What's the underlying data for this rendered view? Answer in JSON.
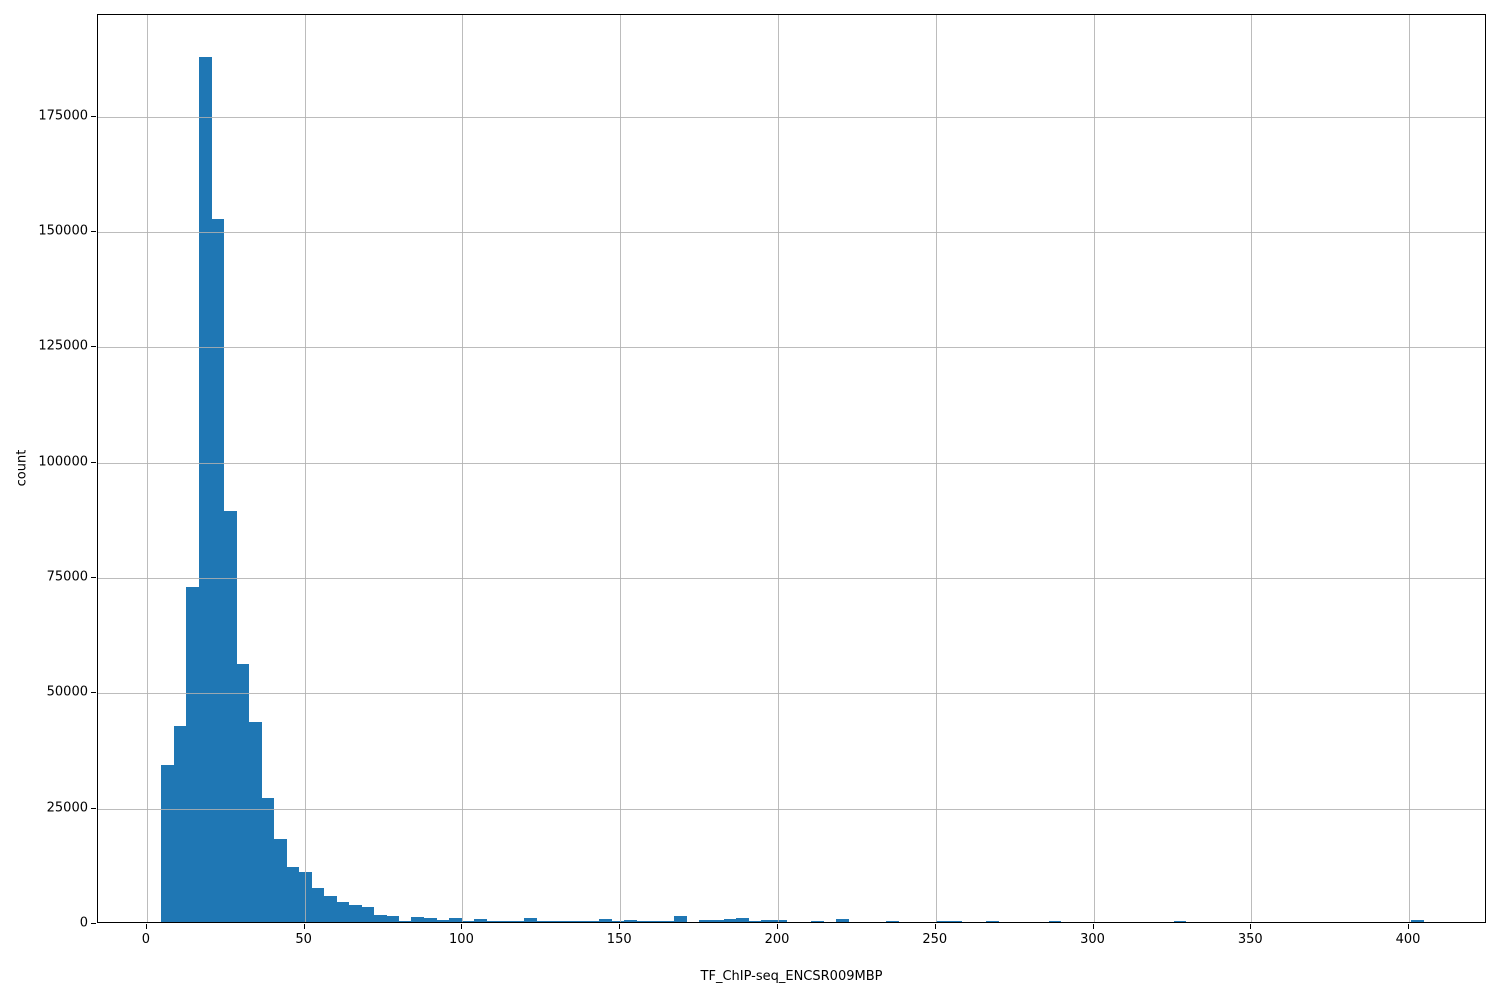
{
  "chart_data": {
    "type": "bar",
    "subtype": "histogram",
    "title": "",
    "xlabel": "TF_ChIP-seq_ENCSR009MBP",
    "ylabel": "count",
    "bar_color": "#1f77b4",
    "grid_color": "#b0b0b0",
    "grid": "on",
    "grid_above_bars": true,
    "legend": "none",
    "xlim": [
      -15.5,
      424.7
    ],
    "ylim": [
      0,
      197000
    ],
    "xticks": [
      "0",
      "50",
      "100",
      "150",
      "200",
      "250",
      "300",
      "350",
      "400"
    ],
    "xtick_values": [
      0,
      50,
      100,
      150,
      200,
      250,
      300,
      350,
      400
    ],
    "yticks": [
      "0",
      "25000",
      "50000",
      "75000",
      "100000",
      "125000",
      "150000",
      "175000"
    ],
    "ytick_values": [
      0,
      25000,
      50000,
      75000,
      100000,
      125000,
      150000,
      175000
    ],
    "bin_width": 3.96,
    "bins_note": "each entry is [bin_left_edge, count]",
    "bins": [
      [
        4.6,
        34000
      ],
      [
        8.56,
        42500
      ],
      [
        12.52,
        72700
      ],
      [
        16.48,
        187500
      ],
      [
        20.44,
        152300
      ],
      [
        24.4,
        89000
      ],
      [
        28.36,
        56000
      ],
      [
        32.32,
        43400
      ],
      [
        36.28,
        26800
      ],
      [
        40.24,
        18000
      ],
      [
        44.2,
        12000
      ],
      [
        48.16,
        10800
      ],
      [
        52.12,
        7300
      ],
      [
        56.08,
        5700
      ],
      [
        60.04,
        4400
      ],
      [
        64.0,
        3700
      ],
      [
        67.96,
        3200
      ],
      [
        71.92,
        1450
      ],
      [
        75.88,
        1350
      ],
      [
        79.84,
        250
      ],
      [
        83.8,
        1100
      ],
      [
        87.76,
        800
      ],
      [
        91.72,
        350
      ],
      [
        95.68,
        900
      ],
      [
        99.64,
        200
      ],
      [
        103.6,
        600
      ],
      [
        107.56,
        300
      ],
      [
        111.52,
        300
      ],
      [
        115.48,
        200
      ],
      [
        119.44,
        850
      ],
      [
        123.4,
        200
      ],
      [
        127.36,
        250
      ],
      [
        131.32,
        220
      ],
      [
        135.28,
        150
      ],
      [
        139.24,
        150
      ],
      [
        143.2,
        700
      ],
      [
        147.16,
        250
      ],
      [
        151.12,
        450
      ],
      [
        155.08,
        150
      ],
      [
        159.04,
        120
      ],
      [
        163.0,
        120
      ],
      [
        166.96,
        1300
      ],
      [
        170.92,
        100
      ],
      [
        174.88,
        400
      ],
      [
        178.84,
        420
      ],
      [
        182.8,
        550
      ],
      [
        186.76,
        800
      ],
      [
        190.72,
        150
      ],
      [
        194.68,
        350
      ],
      [
        198.64,
        330
      ],
      [
        202.6,
        100
      ],
      [
        206.56,
        80
      ],
      [
        210.52,
        280
      ],
      [
        214.48,
        100
      ],
      [
        218.44,
        600
      ],
      [
        222.4,
        80
      ],
      [
        226.36,
        60
      ],
      [
        230.32,
        60
      ],
      [
        234.28,
        300
      ],
      [
        238.24,
        60
      ],
      [
        242.2,
        40
      ],
      [
        246.16,
        40
      ],
      [
        250.12,
        300
      ],
      [
        254.08,
        290
      ],
      [
        258.04,
        50
      ],
      [
        262.0,
        40
      ],
      [
        265.96,
        300
      ],
      [
        269.92,
        50
      ],
      [
        273.88,
        40
      ],
      [
        277.84,
        40
      ],
      [
        281.8,
        40
      ],
      [
        285.76,
        300
      ],
      [
        289.72,
        50
      ],
      [
        293.68,
        30
      ],
      [
        297.64,
        30
      ],
      [
        301.6,
        30
      ],
      [
        305.56,
        30
      ],
      [
        309.52,
        30
      ],
      [
        313.48,
        30
      ],
      [
        317.44,
        30
      ],
      [
        321.4,
        40
      ],
      [
        325.36,
        300
      ],
      [
        329.32,
        40
      ],
      [
        333.28,
        30
      ],
      [
        337.24,
        20
      ],
      [
        341.2,
        20
      ],
      [
        345.16,
        20
      ],
      [
        349.12,
        20
      ],
      [
        353.08,
        20
      ],
      [
        357.04,
        20
      ],
      [
        361.0,
        20
      ],
      [
        364.96,
        20
      ],
      [
        368.92,
        20
      ],
      [
        372.88,
        20
      ],
      [
        376.84,
        20
      ],
      [
        380.8,
        20
      ],
      [
        384.76,
        20
      ],
      [
        388.72,
        20
      ],
      [
        392.68,
        20
      ],
      [
        396.64,
        30
      ],
      [
        400.6,
        500
      ]
    ]
  },
  "layout_colors": {
    "background": "#ffffff",
    "spine": "#000000",
    "text": "#000000"
  }
}
